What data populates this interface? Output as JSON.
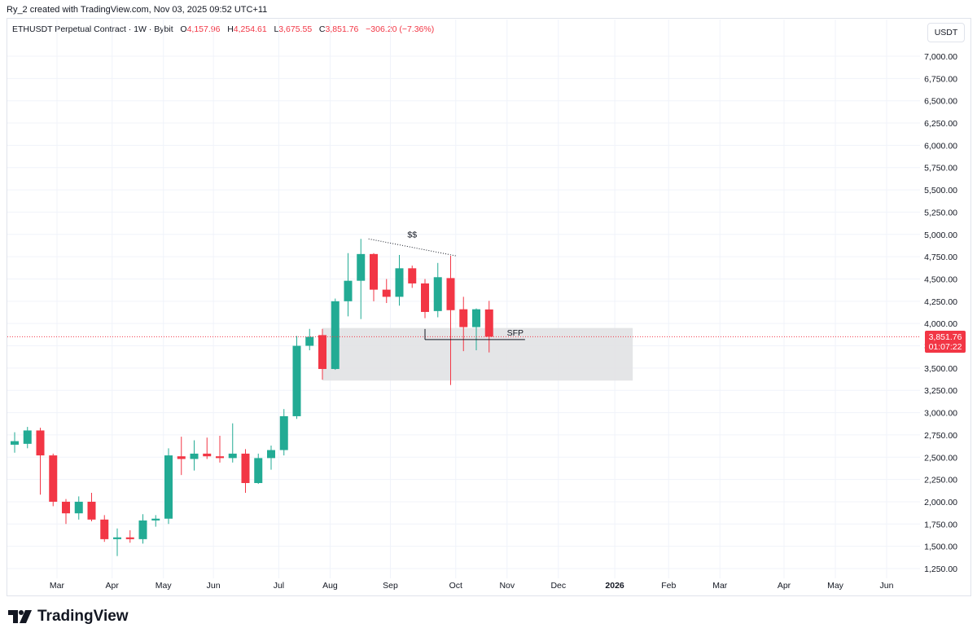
{
  "caption": "Ry_2 created with TradingView.com, Nov 03, 2025 09:52 UTC+11",
  "legend": {
    "symbol": "ETHUSDT Perpetual Contract · 1W · Bybit",
    "o_label": "O",
    "o_value": "4,157.96",
    "h_label": "H",
    "h_value": "4,254.61",
    "l_label": "L",
    "l_value": "3,675.55",
    "c_label": "C",
    "c_value": "3,851.76",
    "change": "−306.20 (−7.36%)"
  },
  "currency": "USDT",
  "price_tag": {
    "price": "3,851.76",
    "countdown": "01:07:22"
  },
  "brand": "TradingView",
  "colors": {
    "up": "#22ab94",
    "down": "#f23645",
    "zone": "#e1e2e4",
    "grid": "#f0f3fa"
  },
  "chart_data": {
    "type": "candlestick",
    "title": "ETHUSDT Perpetual Contract · 1W · Bybit",
    "ylim": [
      1150,
      7150
    ],
    "y_ticks": [
      "7,000.00",
      "6,750.00",
      "6,500.00",
      "6,250.00",
      "6,000.00",
      "5,750.00",
      "5,500.00",
      "5,250.00",
      "5,000.00",
      "4,750.00",
      "4,500.00",
      "4,250.00",
      "4,000.00",
      "3,750.00",
      "3,500.00",
      "3,250.00",
      "3,000.00",
      "2,750.00",
      "2,500.00",
      "2,250.00",
      "2,000.00",
      "1,750.00",
      "1,500.00",
      "1,250.00"
    ],
    "y_tick_values": [
      7000,
      6750,
      6500,
      6250,
      6000,
      5750,
      5500,
      5250,
      5000,
      4750,
      4500,
      4250,
      4000,
      3750,
      3500,
      3250,
      3000,
      2750,
      2500,
      2250,
      2000,
      1750,
      1500,
      1250
    ],
    "x_labels": [
      "Mar",
      "Apr",
      "May",
      "Jun",
      "Jul",
      "Aug",
      "Sep",
      "Oct",
      "Nov",
      "Dec",
      "2026",
      "Feb",
      "Mar",
      "Apr",
      "May",
      "Jun"
    ],
    "x_label_week": [
      3.3,
      7.6,
      11.6,
      15.5,
      20.6,
      24.6,
      29.3,
      34.4,
      38.4,
      42.4,
      46.8,
      51.0,
      55.0,
      60.0,
      64.0,
      68.0
    ],
    "candles": [
      {
        "o": 2640,
        "h": 2780,
        "l": 2550,
        "c": 2680
      },
      {
        "o": 2650,
        "h": 2840,
        "l": 2600,
        "c": 2800
      },
      {
        "o": 2800,
        "h": 2830,
        "l": 2080,
        "c": 2520
      },
      {
        "o": 2520,
        "h": 2540,
        "l": 1950,
        "c": 2000
      },
      {
        "o": 2000,
        "h": 2030,
        "l": 1750,
        "c": 1870
      },
      {
        "o": 1870,
        "h": 2060,
        "l": 1800,
        "c": 2000
      },
      {
        "o": 2000,
        "h": 2100,
        "l": 1780,
        "c": 1800
      },
      {
        "o": 1800,
        "h": 1850,
        "l": 1550,
        "c": 1580
      },
      {
        "o": 1580,
        "h": 1700,
        "l": 1390,
        "c": 1600
      },
      {
        "o": 1600,
        "h": 1680,
        "l": 1540,
        "c": 1580
      },
      {
        "o": 1580,
        "h": 1860,
        "l": 1530,
        "c": 1790
      },
      {
        "o": 1790,
        "h": 1850,
        "l": 1720,
        "c": 1810
      },
      {
        "o": 1810,
        "h": 2600,
        "l": 1750,
        "c": 2520
      },
      {
        "o": 2510,
        "h": 2730,
        "l": 2300,
        "c": 2480
      },
      {
        "o": 2480,
        "h": 2690,
        "l": 2350,
        "c": 2540
      },
      {
        "o": 2540,
        "h": 2720,
        "l": 2480,
        "c": 2510
      },
      {
        "o": 2510,
        "h": 2740,
        "l": 2440,
        "c": 2490
      },
      {
        "o": 2490,
        "h": 2880,
        "l": 2440,
        "c": 2540
      },
      {
        "o": 2540,
        "h": 2590,
        "l": 2100,
        "c": 2210
      },
      {
        "o": 2210,
        "h": 2540,
        "l": 2200,
        "c": 2490
      },
      {
        "o": 2490,
        "h": 2630,
        "l": 2360,
        "c": 2580
      },
      {
        "o": 2580,
        "h": 3040,
        "l": 2520,
        "c": 2960
      },
      {
        "o": 2960,
        "h": 3860,
        "l": 2930,
        "c": 3750
      },
      {
        "o": 3750,
        "h": 3940,
        "l": 3700,
        "c": 3850
      },
      {
        "o": 3870,
        "h": 3940,
        "l": 3370,
        "c": 3490
      },
      {
        "o": 3490,
        "h": 4280,
        "l": 3480,
        "c": 4250
      },
      {
        "o": 4250,
        "h": 4790,
        "l": 4080,
        "c": 4480
      },
      {
        "o": 4480,
        "h": 4950,
        "l": 4050,
        "c": 4780
      },
      {
        "o": 4780,
        "h": 4790,
        "l": 4250,
        "c": 4380
      },
      {
        "o": 4380,
        "h": 4500,
        "l": 4230,
        "c": 4300
      },
      {
        "o": 4300,
        "h": 4770,
        "l": 4200,
        "c": 4620
      },
      {
        "o": 4620,
        "h": 4650,
        "l": 4400,
        "c": 4450
      },
      {
        "o": 4450,
        "h": 4500,
        "l": 4060,
        "c": 4130
      },
      {
        "o": 4140,
        "h": 4680,
        "l": 4070,
        "c": 4520
      },
      {
        "o": 4510,
        "h": 4760,
        "l": 3310,
        "c": 4150
      },
      {
        "o": 4160,
        "h": 4300,
        "l": 3690,
        "c": 3960
      },
      {
        "o": 3960,
        "h": 4170,
        "l": 3700,
        "c": 4160
      },
      {
        "o": 4157.96,
        "h": 4254.61,
        "l": 3675.55,
        "c": 3851.76
      }
    ],
    "current_price": 3851.76,
    "zone": {
      "from_week": 24.0,
      "to_week": 48.2,
      "low": 3360,
      "high": 3950
    },
    "annotations": [
      {
        "label": "$$",
        "type": "dotted-trendline",
        "from": {
          "week": 27.6,
          "price": 4950
        },
        "to": {
          "week": 34.4,
          "price": 4760
        }
      },
      {
        "label": "SFP",
        "type": "level-line",
        "from": {
          "week": 32.0,
          "price": 3820
        },
        "to": {
          "week": 39.8,
          "price": 3820
        }
      }
    ]
  }
}
